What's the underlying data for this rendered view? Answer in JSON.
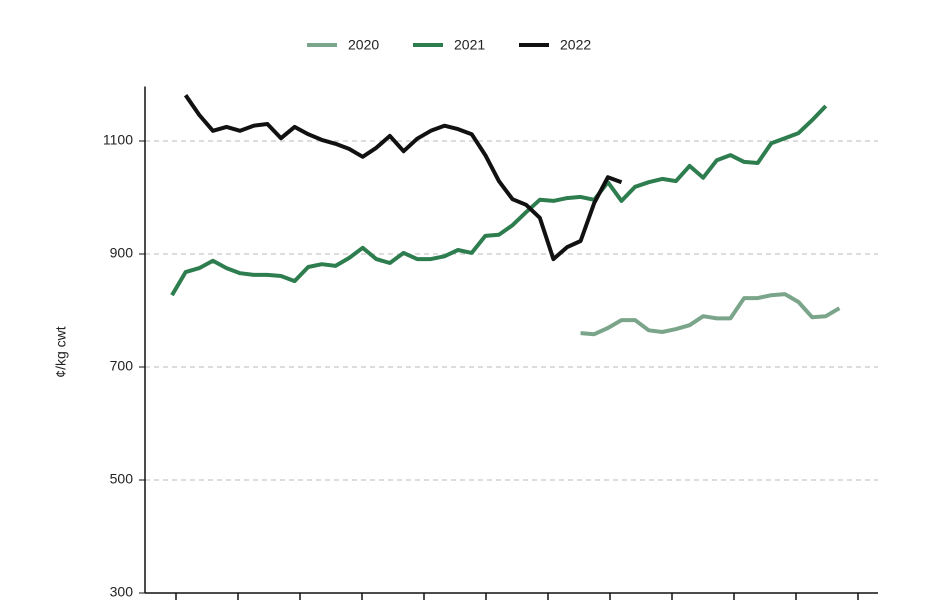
{
  "chart_data": {
    "type": "line",
    "y_label": "¢/kg cwt",
    "categories": [
      null,
      null,
      null,
      null,
      null,
      null,
      null,
      null,
      null,
      null,
      null,
      null,
      null,
      null,
      null,
      null,
      null,
      null,
      null,
      null,
      null,
      null,
      null,
      null,
      null,
      null,
      null,
      null,
      null,
      null,
      null,
      null,
      null,
      null,
      null,
      null,
      null,
      null,
      null,
      null,
      null,
      null,
      null,
      null,
      null,
      null,
      null,
      null,
      null,
      null,
      null,
      null
    ],
    "series": [
      {
        "name": "2020",
        "color": "#7aa58a",
        "values": [
          null,
          null,
          null,
          null,
          null,
          null,
          null,
          null,
          null,
          null,
          null,
          null,
          null,
          null,
          null,
          null,
          null,
          null,
          null,
          null,
          null,
          null,
          null,
          null,
          null,
          null,
          null,
          null,
          null,
          null,
          null,
          760,
          758,
          769,
          783,
          783,
          765,
          762,
          767,
          774,
          790,
          786,
          786,
          822,
          822,
          827,
          829,
          815,
          788,
          790,
          804,
          null
        ]
      },
      {
        "name": "2021",
        "color": "#2e7d4f",
        "values": [
          null,
          827,
          868,
          875,
          888,
          875,
          866,
          863,
          863,
          861,
          852,
          877,
          882,
          879,
          893,
          911,
          891,
          884,
          902,
          891,
          891,
          896,
          907,
          902,
          932,
          934,
          951,
          974,
          996,
          994,
          999,
          1001,
          996,
          1027,
          994,
          1019,
          1027,
          1033,
          1029,
          1056,
          1035,
          1066,
          1075,
          1063,
          1061,
          1096,
          1105,
          1114,
          1137,
          1162,
          null,
          null
        ]
      },
      {
        "name": "2022",
        "color": "#111111",
        "values": [
          null,
          null,
          1181,
          1146,
          1118,
          1125,
          1118,
          1127,
          1130,
          1105,
          1125,
          1112,
          1102,
          1095,
          1086,
          1072,
          1088,
          1109,
          1082,
          1104,
          1118,
          1127,
          1121,
          1112,
          1075,
          1029,
          997,
          987,
          964,
          891,
          912,
          923,
          990,
          1036,
          1027,
          null,
          null,
          null,
          null,
          null,
          null,
          null,
          null,
          null,
          null,
          null,
          null,
          null,
          null,
          null,
          null,
          null
        ]
      }
    ],
    "ylim": [
      300,
      1200
    ],
    "yticks": [
      300,
      500,
      700,
      900,
      1100
    ],
    "grid": true
  }
}
